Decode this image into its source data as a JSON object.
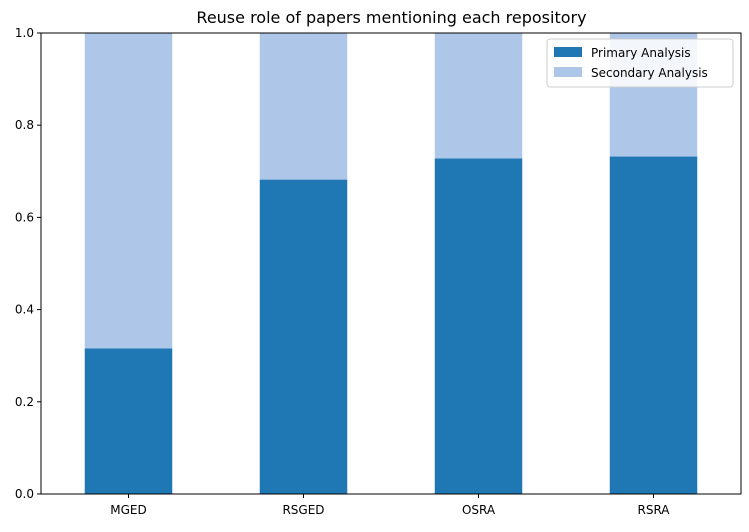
{
  "chart_data": {
    "type": "bar",
    "stacked": true,
    "title": "Reuse role of papers mentioning each repository",
    "xlabel": "",
    "ylabel": "",
    "ylim": [
      0,
      1.0
    ],
    "yticks": [
      "0.0",
      "0.2",
      "0.4",
      "0.6",
      "0.8",
      "1.0"
    ],
    "categories": [
      "MGED",
      "RSGED",
      "OSRA",
      "RSRA"
    ],
    "series": [
      {
        "name": "Primary Analysis",
        "color": "#1f77b4",
        "values": [
          0.316,
          0.682,
          0.728,
          0.732
        ]
      },
      {
        "name": "Secondary Analysis",
        "color": "#aec7e8",
        "values": [
          0.684,
          0.318,
          0.272,
          0.268
        ]
      }
    ],
    "legend": {
      "position": "top-right"
    },
    "grid": false
  }
}
